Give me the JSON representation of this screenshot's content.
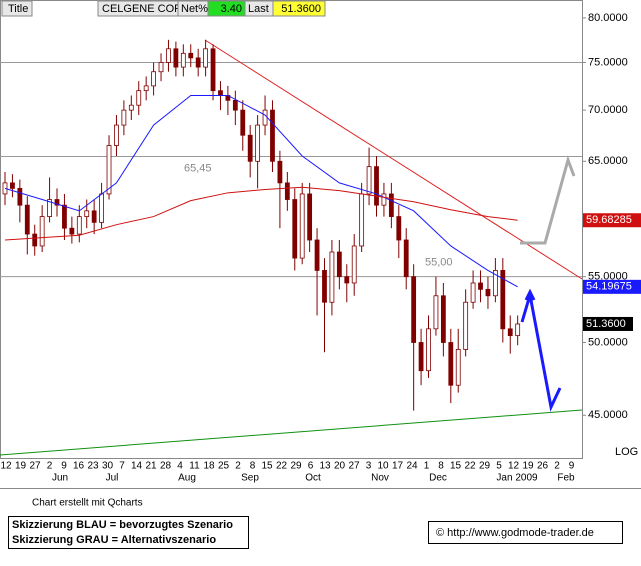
{
  "header": {
    "title_label": "Title",
    "symbol": "CELGENE CORP",
    "net_label": "Net%",
    "net_value": "3.40",
    "last_label": "Last",
    "last_value": "51.3600"
  },
  "chart_data": {
    "type": "candlestick",
    "open": [
      62,
      63,
      62.5,
      61,
      58.5,
      57.5,
      60,
      61.5,
      61,
      59,
      58.5,
      60,
      60.5,
      59.5,
      62,
      66.5,
      68.5,
      70,
      70.5,
      72,
      72.5,
      74,
      75,
      76.5,
      74.5,
      76,
      75.5,
      74.5,
      76.5,
      72,
      71.5,
      71,
      70,
      67.5,
      65,
      68.5,
      70,
      65,
      63,
      61.5,
      56.5,
      62,
      58,
      55.5,
      53,
      57,
      55,
      54.5,
      57.5,
      62,
      64.5,
      61,
      62,
      60,
      58,
      55,
      50,
      48,
      51,
      53.5,
      50,
      47,
      49.5,
      53,
      54.5,
      54,
      53.5,
      55.5,
      51,
      50.5
    ],
    "high": [
      64,
      63.8,
      63.3,
      61.8,
      59.3,
      61,
      63.5,
      62.5,
      62,
      60,
      61,
      61.5,
      61.5,
      63,
      67.5,
      69.5,
      71,
      71.5,
      73,
      73.5,
      75,
      76,
      77.5,
      77.3,
      77,
      77,
      76.5,
      77.5,
      77,
      73,
      72.5,
      72,
      71,
      68.5,
      69.5,
      71.5,
      71,
      66,
      64,
      62.5,
      63,
      63,
      59,
      56.5,
      58,
      58,
      56,
      58.5,
      63,
      66.3,
      65.5,
      63,
      63,
      61,
      59,
      56,
      51,
      52,
      55,
      54.5,
      51,
      51,
      54,
      55.5,
      55.5,
      55,
      56.5,
      56.5,
      52,
      52
    ],
    "low": [
      61,
      61.7,
      59.5,
      56.8,
      56.7,
      57,
      59.5,
      60,
      58,
      57.7,
      57.8,
      59,
      58.5,
      59,
      61.5,
      65.5,
      67.5,
      69,
      69.5,
      71,
      71.5,
      73,
      74,
      73.5,
      73.5,
      74.5,
      73.5,
      73.5,
      71,
      70,
      69.5,
      68.5,
      66,
      63.5,
      62.5,
      67.5,
      64,
      59,
      60.5,
      55.5,
      56,
      57,
      52,
      49.3,
      52,
      54,
      53,
      53.5,
      57,
      61,
      60,
      60,
      59,
      56.5,
      54,
      45.3,
      47,
      47.5,
      50.5,
      49,
      45.8,
      46.5,
      49,
      52.5,
      53,
      52.5,
      53,
      50,
      49.2,
      49.8
    ],
    "close": [
      63,
      62.5,
      61,
      58.5,
      57.5,
      60,
      61.5,
      61,
      59,
      58.5,
      60,
      60.5,
      59.5,
      62,
      66.5,
      68.5,
      70,
      70.5,
      72,
      72.5,
      74,
      75,
      76.5,
      74.5,
      76,
      75.5,
      74.5,
      76.5,
      72,
      71.5,
      71,
      70,
      67.5,
      65,
      68.5,
      70,
      65,
      63,
      61.5,
      56.5,
      62,
      58,
      55.5,
      53,
      57,
      55,
      54.5,
      57.5,
      62,
      64.5,
      61,
      62,
      60,
      58,
      55,
      50,
      48,
      51,
      53.5,
      50,
      47,
      49.5,
      53,
      54.5,
      54,
      53.5,
      55.5,
      51,
      50.5,
      51.36
    ],
    "last_value_label": "51.3600",
    "up_color": "#ffffff",
    "down_color": "#800000",
    "series": [
      {
        "color": "#1a1aff",
        "values": [
          62.5,
          61.5,
          60.5,
          63,
          68.5,
          71.5,
          71.5,
          69.5,
          65.5,
          63,
          62,
          60.5,
          57.5,
          55.5,
          54.19675
        ]
      },
      {
        "color": "#d01010",
        "values": [
          58,
          58.2,
          58.4,
          59.3,
          60,
          61.4,
          62.1,
          62.4,
          62.6,
          62.3,
          61.8,
          61.3,
          60.6,
          60,
          59.68285
        ]
      }
    ],
    "levels": [
      {
        "value": 75
      },
      {
        "value": 65.45,
        "label": "65,45"
      },
      {
        "value": 55,
        "label": "55,00"
      }
    ],
    "log_scale": true,
    "scale_label": "LOG",
    "ylim": [
      42.3,
      82.1
    ],
    "yticks": [
      {
        "value": 80,
        "label": "80.0000"
      },
      {
        "value": 75,
        "label": "75.0000"
      },
      {
        "value": 70,
        "label": "70.0000"
      },
      {
        "value": 65,
        "label": "65.0000"
      },
      {
        "value": 55,
        "label": "55.0000"
      },
      {
        "value": 50,
        "label": "50.0000"
      },
      {
        "value": 45,
        "label": "45.0000"
      }
    ],
    "week_labels": [
      "12",
      "19",
      "27",
      "2",
      "9",
      "16",
      "23",
      "30",
      "7",
      "14",
      "21",
      "28",
      "4",
      "11",
      "18",
      "25",
      "2",
      "8",
      "15",
      "22",
      "29",
      "6",
      "13",
      "20",
      "27",
      "3",
      "10",
      "17",
      "24",
      "1",
      "8",
      "15",
      "22",
      "29",
      "5",
      "12",
      "19",
      "26",
      "2",
      "9"
    ],
    "month_labels": [
      "Jun",
      "Jul",
      "Aug",
      "Sep",
      "Oct",
      "Nov",
      "Dec",
      "Jan 2009",
      "Feb"
    ]
  },
  "footer": {
    "credit": "Chart erstellt mit Qcharts",
    "legend_blue": "Skizzierung BLAU = bevorzugtes Szenario",
    "legend_grey": "Skizzierung GRAU = Alternativszenario",
    "source": "© http://www.godmode-trader.de"
  }
}
